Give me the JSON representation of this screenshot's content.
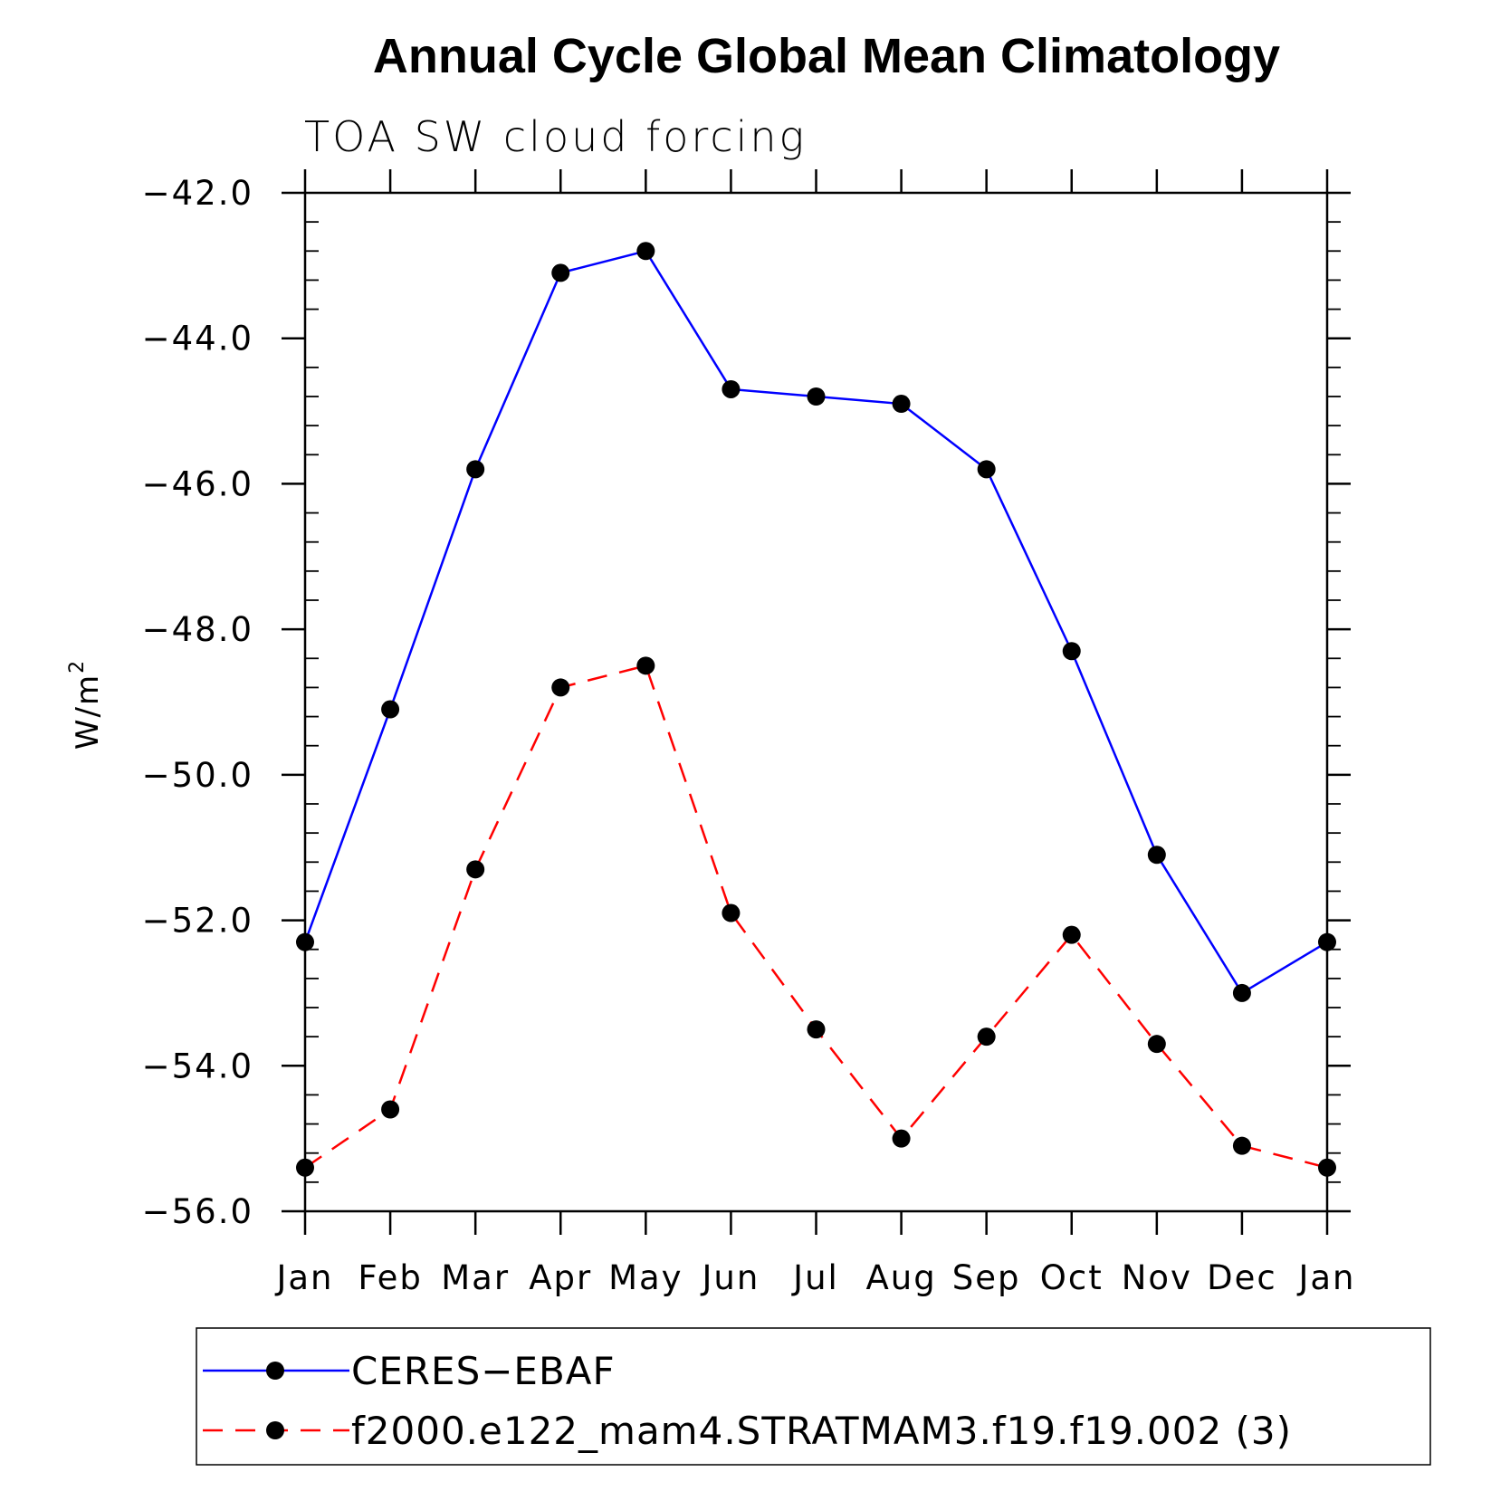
{
  "chart_data": {
    "type": "line",
    "title": "Annual Cycle Global Mean Climatology",
    "subtitle": "TOA SW cloud forcing",
    "ylabel": "W/m",
    "ylabel_superscript": "2",
    "xlabel": "",
    "categories": [
      "Jan",
      "Feb",
      "Mar",
      "Apr",
      "May",
      "Jun",
      "Jul",
      "Aug",
      "Sep",
      "Oct",
      "Nov",
      "Dec",
      "Jan"
    ],
    "ylim": [
      -56.0,
      -42.0
    ],
    "yticks": [
      "−42.0",
      "−44.0",
      "−46.0",
      "−48.0",
      "−50.0",
      "−52.0",
      "−54.0",
      "−56.0"
    ],
    "ytick_values": [
      -42,
      -44,
      -46,
      -48,
      -50,
      -52,
      -54,
      -56
    ],
    "legend_position": "bottom",
    "series": [
      {
        "name": "CERES−EBAF",
        "color": "#0000ff",
        "dash": "solid",
        "marker": "dot",
        "values": [
          -52.3,
          -49.1,
          -45.8,
          -43.1,
          -42.8,
          -44.7,
          -44.8,
          -44.9,
          -45.8,
          -48.3,
          -51.1,
          -53.0,
          -52.3
        ]
      },
      {
        "name": "f2000.e122_mam4.STRATMAM3.f19.f19.002 (3)",
        "color": "#ff0000",
        "dash": "dashed",
        "marker": "dot",
        "values": [
          -55.4,
          -54.6,
          -51.3,
          -48.8,
          -48.5,
          -51.9,
          -53.5,
          -55.0,
          -53.6,
          -52.2,
          -53.7,
          -55.1,
          -55.4
        ]
      }
    ]
  }
}
